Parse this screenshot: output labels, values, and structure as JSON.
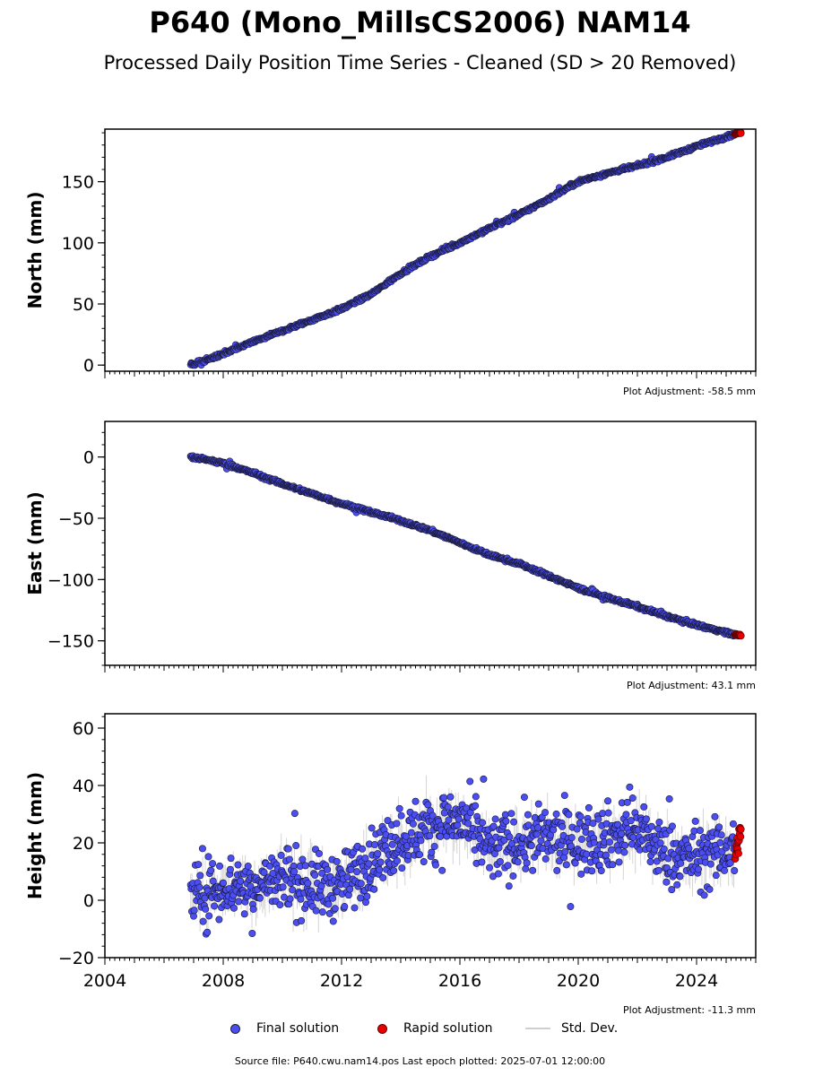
{
  "title": "P640 (Mono_MillsCS2006) NAM14",
  "subtitle": "Processed Daily Position Time Series - Cleaned (SD > 20 Removed)",
  "legend": {
    "final": "Final solution",
    "rapid": "Rapid solution",
    "stddev": "Std. Dev."
  },
  "source": "Source file: P640.cwu.nam14.pos  Last epoch plotted: 2025-07-01 12:00:00",
  "colors": {
    "final": "#4b4ef2",
    "rapid": "#e80000",
    "stddev": "#b0b0b0",
    "axis": "#000000"
  },
  "chart_data": [
    {
      "type": "scatter",
      "ylabel": "North (mm)",
      "adjustment": "Plot Adjustment: -58.5 mm",
      "xlim": [
        2004,
        2026
      ],
      "ylim": [
        -5,
        193
      ],
      "yticks": [
        0,
        50,
        100,
        150
      ],
      "ytick_labels": [
        "0",
        "50",
        "100",
        "150"
      ],
      "series": [
        {
          "name": "Final solution",
          "x": [
            2006.9,
            2008,
            2009,
            2010,
            2011,
            2012,
            2013,
            2014,
            2015,
            2016,
            2017,
            2018,
            2019,
            2020,
            2021,
            2022,
            2023,
            2024,
            2025.3
          ],
          "y": [
            0,
            9,
            19,
            28,
            37,
            46,
            58,
            75,
            89,
            100,
            112,
            123,
            136,
            150,
            157,
            163,
            170,
            179,
            189
          ]
        },
        {
          "name": "Rapid solution",
          "x": [
            2025.3,
            2025.4,
            2025.5
          ],
          "y": [
            189,
            190,
            190
          ]
        }
      ]
    },
    {
      "type": "scatter",
      "ylabel": "East (mm)",
      "adjustment": "Plot Adjustment: 43.1 mm",
      "xlim": [
        2004,
        2026
      ],
      "ylim": [
        -170,
        29
      ],
      "yticks": [
        0,
        -50,
        -100,
        -150
      ],
      "ytick_labels": [
        "0",
        "−50",
        "−100",
        "−150"
      ],
      "series": [
        {
          "name": "Final solution",
          "x": [
            2006.9,
            2008,
            2009,
            2010,
            2011,
            2012,
            2013,
            2014,
            2015,
            2016,
            2017,
            2018,
            2019,
            2020,
            2021,
            2022,
            2023,
            2024,
            2025.3
          ],
          "y": [
            0,
            -5,
            -13,
            -22,
            -30,
            -38,
            -45,
            -52,
            -60,
            -70,
            -80,
            -87,
            -97,
            -107,
            -115,
            -122,
            -130,
            -137,
            -145
          ]
        },
        {
          "name": "Rapid solution",
          "x": [
            2025.3,
            2025.4,
            2025.5
          ],
          "y": [
            -145,
            -145,
            -146
          ]
        }
      ]
    },
    {
      "type": "scatter",
      "ylabel": "Height (mm)",
      "adjustment": "Plot Adjustment: -11.3 mm",
      "xlim": [
        2004,
        2026
      ],
      "ylim": [
        -20,
        65
      ],
      "yticks": [
        -20,
        0,
        20,
        40,
        60
      ],
      "ytick_labels": [
        "−20",
        "0",
        "20",
        "40",
        "60"
      ],
      "xticks": [
        2004,
        2008,
        2012,
        2016,
        2020,
        2024
      ],
      "xtick_labels": [
        "2004",
        "2008",
        "2012",
        "2016",
        "2020",
        "2024"
      ],
      "series": [
        {
          "name": "Final solution",
          "x": [
            2006.9,
            2008,
            2009,
            2010,
            2011,
            2012,
            2013,
            2014,
            2015,
            2016,
            2017,
            2018,
            2019,
            2020,
            2021,
            2022,
            2023,
            2024,
            2025.3
          ],
          "y": [
            0,
            5,
            5,
            8,
            5,
            5,
            14,
            22,
            25,
            28,
            18,
            20,
            22,
            20,
            22,
            25,
            15,
            15,
            18
          ]
        },
        {
          "name": "Rapid solution",
          "x": [
            2025.3,
            2025.4,
            2025.5
          ],
          "y": [
            15,
            20,
            24
          ]
        }
      ]
    }
  ]
}
